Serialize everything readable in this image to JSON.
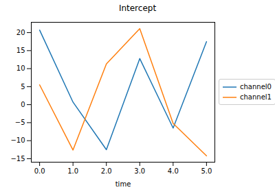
{
  "chart_data": {
    "type": "line",
    "title": "Intercept",
    "x_label": "time",
    "x": [
      0,
      1,
      2,
      3,
      4,
      5
    ],
    "series": [
      {
        "name": "channel0",
        "color": "#1f77b4",
        "values": [
          20.7,
          0.7,
          -12.5,
          12.8,
          -6.5,
          17.5
        ]
      },
      {
        "name": "channel1",
        "color": "#ff7f0e",
        "values": [
          5.5,
          -12.6,
          11.3,
          21.1,
          -5.2,
          -14.2
        ]
      }
    ],
    "xlim": [
      -0.25,
      5.25
    ],
    "xticks": [
      0,
      1,
      2,
      3,
      4,
      5
    ],
    "ylim": [
      -15.97,
      22.87
    ],
    "yticks": [
      -15,
      -10,
      -5,
      0,
      5,
      10,
      15,
      20
    ],
    "grid": false,
    "legend": "right"
  }
}
